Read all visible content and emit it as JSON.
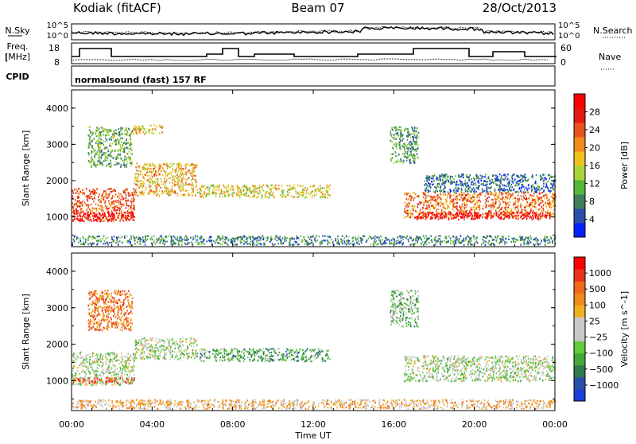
{
  "header": {
    "station": "Kodiak (fitACF)",
    "beam": "Beam 07",
    "date": "28/Oct/2013"
  },
  "noise_panel": {
    "left_label": "N.Sky",
    "left_ticks": [
      "10^5",
      "10^0"
    ],
    "right_label": "N.Search",
    "right_ticks": [
      "10^5",
      "10^0"
    ]
  },
  "freq_panel": {
    "left_label_1": "Freq.",
    "left_label_2": "[MHz]",
    "left_ticks": [
      "18",
      "8"
    ],
    "right_label": "Nave",
    "right_ticks": [
      "60",
      "0"
    ]
  },
  "cpid_panel": {
    "label": "CPID",
    "text": "normalsound (fast) 157 RF"
  },
  "chart_data": [
    {
      "type": "heatmap",
      "title": "",
      "xlabel": "Time UT",
      "ylabel": "Slant Range [km]",
      "xlim_hours": [
        0,
        24
      ],
      "ylim": [
        180,
        4500
      ],
      "x_ticks": [
        "00:00",
        "04:00",
        "08:00",
        "12:00",
        "16:00",
        "20:00",
        "00:00"
      ],
      "y_ticks": [
        1000,
        2000,
        3000,
        4000
      ],
      "colorbar": {
        "label": "Power [dB]",
        "ticks": [
          "28",
          "24",
          "20",
          "16",
          "12",
          "8",
          "4"
        ],
        "colors": [
          "#0022ff",
          "#2a4fa8",
          "#3f7f5a",
          "#55b63c",
          "#a8d43a",
          "#f0c21e",
          "#f08a1a",
          "#e8521c",
          "#e01a14",
          "#ff0000"
        ]
      },
      "regions": [
        {
          "t": [
            0.0,
            3.1
          ],
          "r": [
            900,
            1800
          ],
          "level": 0.75
        },
        {
          "t": [
            0.0,
            3.1
          ],
          "r": [
            900,
            1150
          ],
          "level": 0.97
        },
        {
          "t": [
            0.8,
            3.0
          ],
          "r": [
            2400,
            3500
          ],
          "level": 0.35
        },
        {
          "t": [
            3.1,
            6.2
          ],
          "r": [
            1600,
            2500
          ],
          "level": 0.6
        },
        {
          "t": [
            6.2,
            12.8
          ],
          "r": [
            1550,
            1900
          ],
          "level": 0.5
        },
        {
          "t": [
            3.0,
            4.5
          ],
          "r": [
            3300,
            3550
          ],
          "level": 0.55
        },
        {
          "t": [
            15.8,
            17.2
          ],
          "r": [
            2500,
            3500
          ],
          "level": 0.3
        },
        {
          "t": [
            16.5,
            24.0
          ],
          "r": [
            1000,
            1700
          ],
          "level": 0.7
        },
        {
          "t": [
            17.0,
            23.8
          ],
          "r": [
            950,
            1150
          ],
          "level": 0.97
        },
        {
          "t": [
            17.5,
            24.0
          ],
          "r": [
            1700,
            2200
          ],
          "level": 0.2
        },
        {
          "t": [
            0.0,
            24.0
          ],
          "r": [
            250,
            500
          ],
          "level": 0.25
        }
      ]
    },
    {
      "type": "heatmap",
      "title": "",
      "xlabel": "Time UT",
      "ylabel": "Slant Range [km]",
      "xlim_hours": [
        0,
        24
      ],
      "ylim": [
        180,
        4500
      ],
      "x_ticks": [
        "00:00",
        "04:00",
        "08:00",
        "12:00",
        "16:00",
        "20:00",
        "00:00"
      ],
      "y_ticks": [
        1000,
        2000,
        3000,
        4000
      ],
      "colorbar": {
        "label": "Velocity [m s^-1]",
        "ticks": [
          "1000",
          "500",
          "100",
          "25",
          "−25",
          "−100",
          "−500",
          "−1000"
        ],
        "colors": [
          "#1c3fd6",
          "#2a4fa8",
          "#2f7a4a",
          "#44a83a",
          "#5fcc3a",
          "#c8c8c8",
          "#c8c8c8",
          "#f0b020",
          "#f08a1a",
          "#f06a1a",
          "#e8321c",
          "#ff0000"
        ]
      },
      "regions": [
        {
          "t": [
            0.0,
            3.1
          ],
          "r": [
            900,
            1800
          ],
          "level": 0.45
        },
        {
          "t": [
            0.0,
            3.1
          ],
          "r": [
            950,
            1100
          ],
          "level": 0.8
        },
        {
          "t": [
            0.8,
            3.0
          ],
          "r": [
            2400,
            3500
          ],
          "level": 0.75
        },
        {
          "t": [
            3.1,
            6.2
          ],
          "r": [
            1600,
            2200
          ],
          "level": 0.45
        },
        {
          "t": [
            6.2,
            12.8
          ],
          "r": [
            1550,
            1900
          ],
          "level": 0.3
        },
        {
          "t": [
            15.8,
            17.2
          ],
          "r": [
            2500,
            3500
          ],
          "level": 0.35
        },
        {
          "t": [
            16.5,
            24.0
          ],
          "r": [
            1000,
            1700
          ],
          "level": 0.45
        },
        {
          "t": [
            0.0,
            24.0
          ],
          "r": [
            250,
            500
          ],
          "level": 0.62
        }
      ]
    }
  ]
}
